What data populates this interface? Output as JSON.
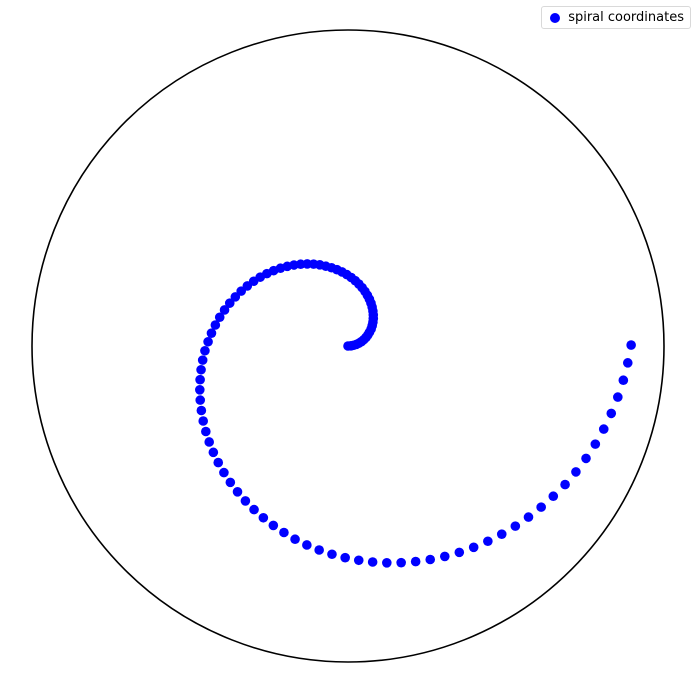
{
  "chart_data": {
    "type": "scatter",
    "coordinate_system": "polar",
    "title": "",
    "legend": {
      "placement": "top-right",
      "entries": [
        "spiral coordinates"
      ]
    },
    "series": [
      {
        "name": "spiral coordinates",
        "color": "#0000ff",
        "marker": "circle",
        "theta": [
          0,
          0.0635,
          0.127,
          0.1905,
          0.254,
          0.3175,
          0.381,
          0.4445,
          0.508,
          0.5715,
          0.635,
          0.6985,
          0.762,
          0.8255,
          0.889,
          0.9525,
          1.016,
          1.0795,
          1.143,
          1.2065,
          1.27,
          1.3335,
          1.397,
          1.4605,
          1.524,
          1.5875,
          1.651,
          1.7145,
          1.778,
          1.8415,
          1.905,
          1.9685,
          2.032,
          2.0955,
          2.159,
          2.2225,
          2.286,
          2.3495,
          2.413,
          2.4765,
          2.54,
          2.6035,
          2.667,
          2.7305,
          2.794,
          2.8575,
          2.921,
          2.9845,
          3.048,
          3.1115,
          3.175,
          3.2385,
          3.302,
          3.3655,
          3.429,
          3.4925,
          3.556,
          3.6195,
          3.683,
          3.7465,
          3.81,
          3.8735,
          3.937,
          4.0005,
          4.064,
          4.1275,
          4.191,
          4.2545,
          4.318,
          4.3815,
          4.445,
          4.5085,
          4.572,
          4.6355,
          4.699,
          4.7625,
          4.826,
          4.8895,
          4.953,
          5.0165,
          5.08,
          5.1435,
          5.207,
          5.2705,
          5.334,
          5.3975,
          5.461,
          5.5245,
          5.588,
          5.6515,
          5.715,
          5.7785,
          5.842,
          5.9055,
          5.969,
          6.0325,
          6.096,
          6.1595,
          6.223,
          6.2865
        ],
        "r": [
          0.0,
          0.009,
          0.018,
          0.027,
          0.036,
          0.045,
          0.054,
          0.063,
          0.072,
          0.081,
          0.091,
          0.1,
          0.109,
          0.118,
          0.127,
          0.136,
          0.145,
          0.154,
          0.163,
          0.172,
          0.181,
          0.19,
          0.199,
          0.208,
          0.217,
          0.226,
          0.235,
          0.244,
          0.253,
          0.262,
          0.272,
          0.281,
          0.29,
          0.299,
          0.308,
          0.317,
          0.326,
          0.335,
          0.344,
          0.353,
          0.362,
          0.371,
          0.38,
          0.389,
          0.398,
          0.407,
          0.416,
          0.425,
          0.434,
          0.443,
          0.453,
          0.462,
          0.471,
          0.48,
          0.489,
          0.498,
          0.507,
          0.516,
          0.525,
          0.534,
          0.543,
          0.552,
          0.561,
          0.57,
          0.579,
          0.588,
          0.597,
          0.606,
          0.615,
          0.624,
          0.634,
          0.643,
          0.652,
          0.661,
          0.67,
          0.679,
          0.688,
          0.697,
          0.706,
          0.715,
          0.724,
          0.733,
          0.742,
          0.751,
          0.76,
          0.769,
          0.778,
          0.787,
          0.796,
          0.805,
          0.815,
          0.824,
          0.833,
          0.842,
          0.851,
          0.86,
          0.869,
          0.878,
          0.887,
          0.896
        ]
      }
    ],
    "r_range": [
      0,
      1
    ],
    "grid": false,
    "axis_labels_visible": false
  }
}
